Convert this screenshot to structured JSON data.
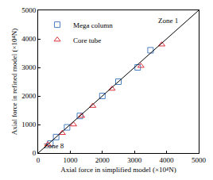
{
  "chart_data": {
    "type": "scatter",
    "x_label": "Axial force in simplified model (×10⁴N)",
    "y_label": "Axial force in refined model (×10⁴N)",
    "xlim": [
      0,
      5000
    ],
    "ylim": [
      0,
      5000
    ],
    "xticks": [
      0,
      1000,
      2000,
      3000,
      4000,
      5000
    ],
    "yticks": [
      0,
      1000,
      2000,
      3000,
      4000,
      5000
    ],
    "legend": "top left",
    "annotations": [
      {
        "text": "Zone 1",
        "x": 4050,
        "y": 4650
      },
      {
        "text": "Zone 8",
        "x": 500,
        "y": 250
      }
    ],
    "series": [
      {
        "name": "Mega column",
        "color": "#4a7fc1",
        "marker": "square-open",
        "x": [
          380,
          560,
          900,
          1300,
          2000,
          2500,
          3100,
          3500
        ],
        "values": [
          330,
          560,
          900,
          1300,
          2000,
          2500,
          3000,
          3600
        ]
      },
      {
        "name": "Core tube",
        "color": "#e0303a",
        "marker": "triangle-up-open",
        "x": [
          300,
          750,
          1100,
          1350,
          1700,
          2300,
          3200,
          3850
        ],
        "values": [
          300,
          700,
          1000,
          1300,
          1650,
          2250,
          3050,
          3800
        ]
      },
      {
        "type": "line",
        "color": "#000000",
        "line_style": "solid",
        "x": [
          0,
          5000
        ],
        "values": [
          0,
          5000
        ]
      }
    ]
  }
}
